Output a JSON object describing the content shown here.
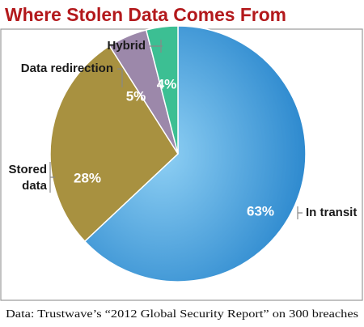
{
  "chart_data": {
    "type": "pie",
    "title": "Where Stolen Data Comes From",
    "categories": [
      "In transit",
      "Stored data",
      "Data redirection",
      "Hybrid"
    ],
    "values": [
      63,
      28,
      5,
      4
    ],
    "value_labels": [
      "63%",
      "28%",
      "5%",
      "4%"
    ],
    "colors": [
      "#2586d0",
      "#a89140",
      "#9c88aa",
      "#3cbf93"
    ],
    "source": "Data: Trustwave’s “2012 Global Security Report” on 300 breaches"
  }
}
